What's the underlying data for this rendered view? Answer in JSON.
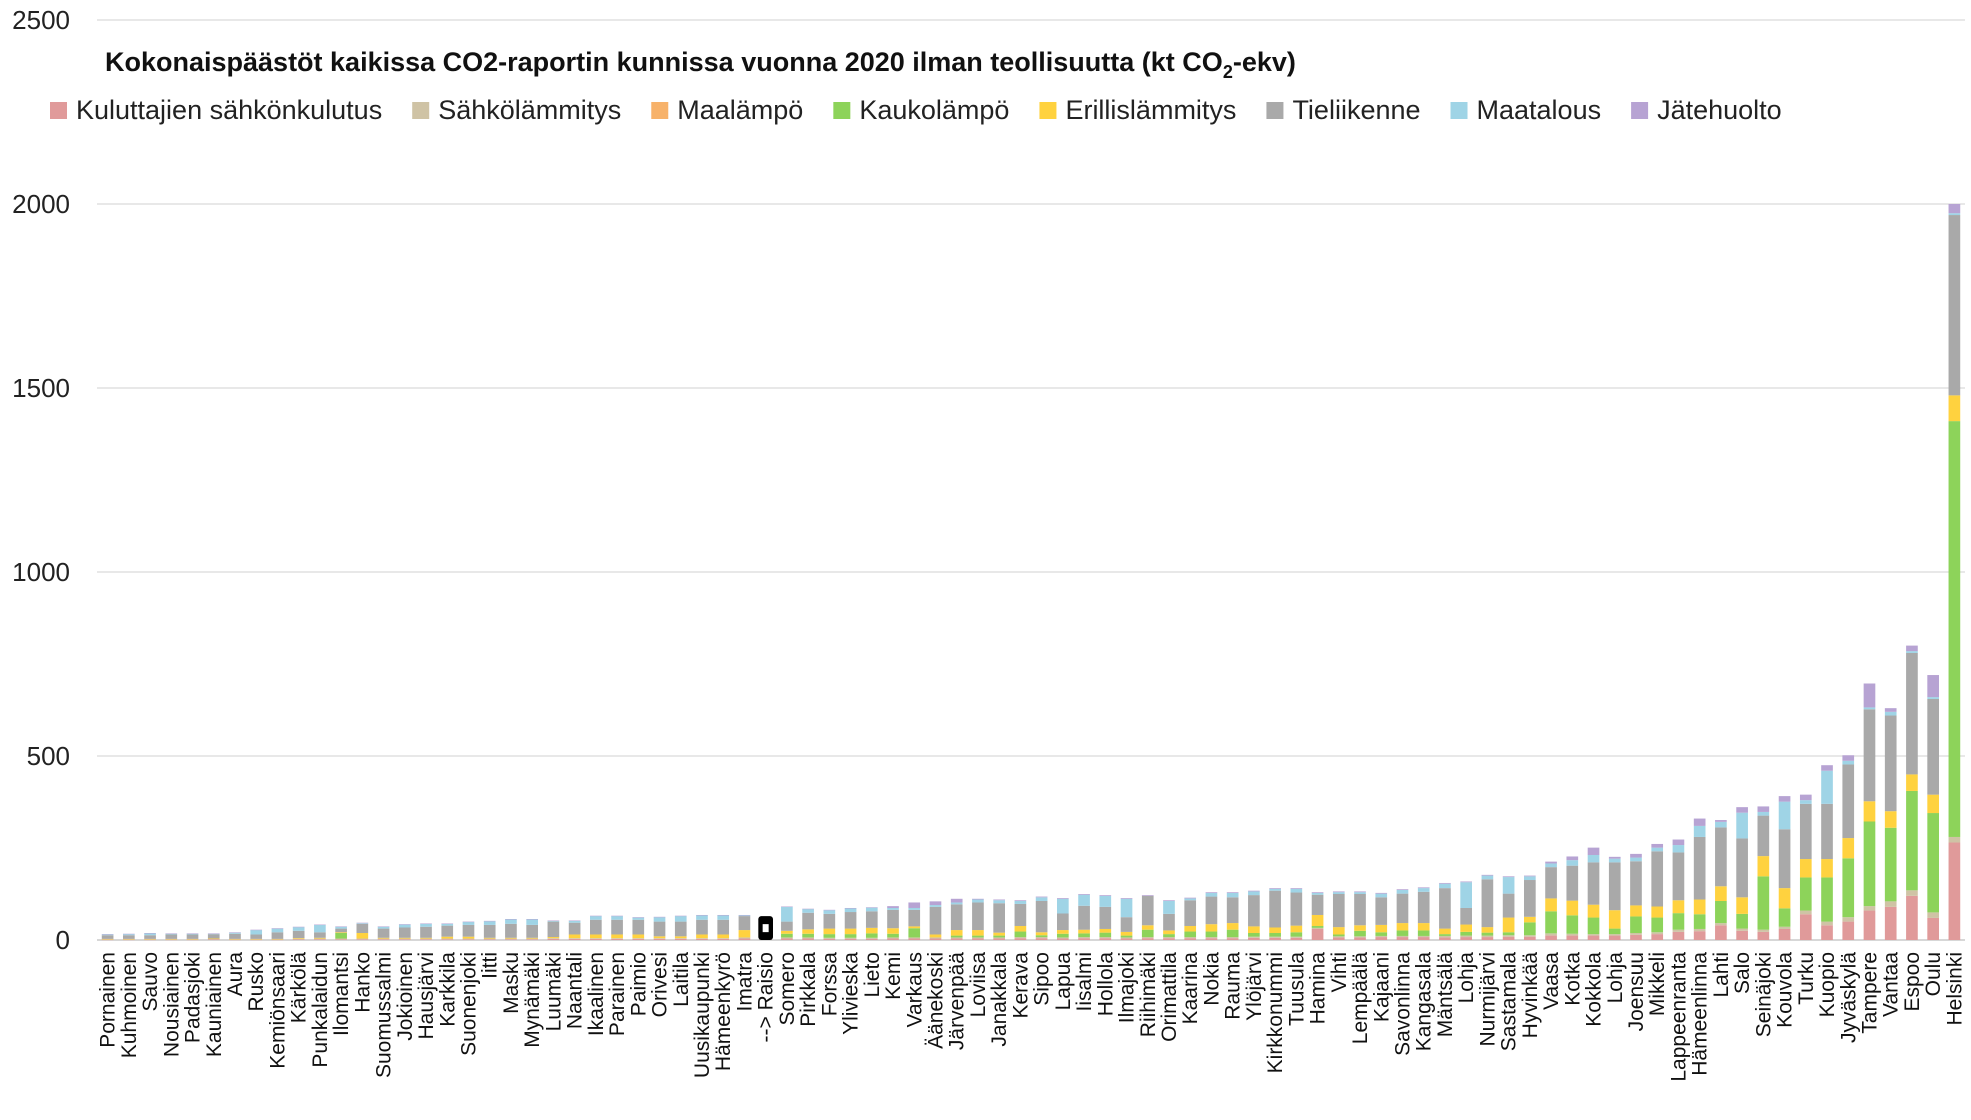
{
  "chart_data": {
    "type": "bar",
    "stacked": true,
    "title": "Kokonaispäästöt kaikissa CO2-raportin kunnissa vuonna 2020 ilman teollisuutta (kt CO",
    "title_subscript": "2",
    "title_suffix": "-ekv)",
    "xlabel": "",
    "ylabel": "",
    "ylim": [
      0,
      2500
    ],
    "yticks": [
      "0",
      "500",
      "1000",
      "1500",
      "2000",
      "2500"
    ],
    "grid": true,
    "legend_position": "top",
    "highlighted_category": "--> Raisio",
    "highlight_color": "#000000",
    "categories": [
      "Pornainen",
      "Kuhmoinen",
      "Sauvo",
      "Nousiainen",
      "Padasjoki",
      "Kauniainen",
      "Aura",
      "Rusko",
      "Kemiönsaari",
      "Kärkölä",
      "Punkalaidun",
      "Ilomantsi",
      "Hanko",
      "Suomussalmi",
      "Jokioinen",
      "Hausjärvi",
      "Karkkila",
      "Suonenjoki",
      "Iitti",
      "Masku",
      "Mynämäki",
      "Luumäki",
      "Naantali",
      "Ikaalinen",
      "Parainen",
      "Paimio",
      "Orivesi",
      "Laitila",
      "Uusikaupunki",
      "Hämeenkyrö",
      "Imatra",
      "--> Raisio",
      "Somero",
      "Pirkkala",
      "Forssa",
      "Ylivieska",
      "Lieto",
      "Kemi",
      "Varkaus",
      "Äänekoski",
      "Järvenpää",
      "Loviisa",
      "Janakkala",
      "Kerava",
      "Sipoo",
      "Lapua",
      "Iisalmi",
      "Hollola",
      "Ilmajoki",
      "Riihimäki",
      "Orimattila",
      "Kaarina",
      "Nokia",
      "Rauma",
      "Ylöjärvi",
      "Kirkkonummi",
      "Tuusula",
      "Hamina",
      "Vihti",
      "Lempäälä",
      "Kajaani",
      "Savonlinna",
      "Kangasala",
      "Mäntsälä",
      "Lohja",
      "Nurmijärvi",
      "Sastamala",
      "Hyvinkää",
      "Vaasa",
      "Kotka",
      "Kokkola",
      "Lohja",
      "Joensuu",
      "Mikkeli",
      "Lappeenranta",
      "Hämeenlinna",
      "Lahti",
      "Salo",
      "Seinäjoki",
      "Kouvola",
      "Turku",
      "Kuopio",
      "Jyväskylä",
      "Tampere",
      "Vantaa",
      "Espoo",
      "Oulu",
      "Helsinki"
    ],
    "series": [
      {
        "name": "Kuluttajien sähkönkulutus",
        "color": "#E09A9A",
        "values": [
          1,
          1,
          1,
          1,
          1,
          2,
          1,
          1,
          1,
          2,
          2,
          2,
          2,
          2,
          2,
          2,
          2,
          2,
          2,
          2,
          2,
          3,
          3,
          3,
          3,
          3,
          3,
          3,
          3,
          3,
          4,
          4,
          4,
          4,
          3,
          3,
          3,
          4,
          4,
          4,
          4,
          4,
          4,
          5,
          5,
          4,
          5,
          5,
          4,
          5,
          5,
          5,
          5,
          5,
          6,
          6,
          6,
          30,
          7,
          7,
          8,
          8,
          8,
          7,
          8,
          8,
          9,
          9,
          12,
          12,
          12,
          12,
          14,
          16,
          22,
          24,
          40,
          25,
          22,
          30,
          70,
          40,
          50,
          80,
          90,
          120,
          60,
          265
        ]
      },
      {
        "name": "Sähkölämmitys",
        "color": "#CFC3A5",
        "values": [
          1,
          1,
          1,
          1,
          1,
          1,
          1,
          1,
          1,
          1,
          2,
          2,
          2,
          2,
          2,
          2,
          2,
          2,
          2,
          2,
          2,
          2,
          2,
          2,
          2,
          2,
          2,
          2,
          2,
          2,
          3,
          3,
          3,
          3,
          3,
          3,
          3,
          3,
          3,
          3,
          3,
          3,
          3,
          3,
          3,
          3,
          3,
          3,
          3,
          3,
          3,
          3,
          3,
          3,
          3,
          3,
          3,
          3,
          3,
          3,
          3,
          3,
          3,
          4,
          4,
          4,
          4,
          4,
          6,
          5,
          4,
          4,
          5,
          5,
          6,
          6,
          6,
          6,
          6,
          6,
          10,
          10,
          12,
          12,
          15,
          15,
          15,
          15
        ]
      },
      {
        "name": "Maalämpö",
        "color": "#F7B26A",
        "values": [
          0,
          0,
          0,
          0,
          0,
          0,
          0,
          0,
          0,
          0,
          0,
          0,
          0,
          0,
          0,
          0,
          0,
          0,
          0,
          0,
          0,
          0,
          0,
          0,
          0,
          0,
          0,
          0,
          0,
          0,
          0,
          0,
          0,
          0,
          0,
          0,
          0,
          0,
          0,
          0,
          0,
          0,
          0,
          0,
          0,
          0,
          0,
          0,
          0,
          0,
          0,
          0,
          0,
          0,
          0,
          0,
          0,
          0,
          0,
          0,
          0,
          0,
          0,
          0,
          0,
          0,
          0,
          0,
          0,
          0,
          0,
          0,
          0,
          0,
          0,
          0,
          0,
          0,
          0,
          0,
          0,
          0,
          0,
          0,
          0,
          0,
          0,
          0
        ]
      },
      {
        "name": "Kaukolämpö",
        "color": "#8DD35A",
        "values": [
          0,
          0,
          0,
          0,
          0,
          0,
          0,
          0,
          0,
          0,
          0,
          15,
          0,
          0,
          0,
          0,
          0,
          0,
          0,
          0,
          0,
          0,
          0,
          0,
          0,
          0,
          0,
          0,
          0,
          0,
          0,
          0,
          10,
          10,
          10,
          10,
          12,
          10,
          25,
          0,
          5,
          5,
          5,
          15,
          5,
          10,
          10,
          12,
          5,
          20,
          8,
          15,
          15,
          20,
          10,
          10,
          12,
          5,
          5,
          15,
          10,
          15,
          15,
          5,
          10,
          8,
          8,
          35,
          60,
          50,
          45,
          15,
          45,
          40,
          45,
          40,
          60,
          40,
          145,
          50,
          90,
          120,
          160,
          230,
          200,
          270,
          270,
          1130
        ]
      },
      {
        "name": "Erillislämmitys",
        "color": "#FFD23F",
        "values": [
          1,
          1,
          1,
          1,
          1,
          1,
          1,
          1,
          1,
          2,
          2,
          2,
          15,
          2,
          2,
          2,
          5,
          5,
          2,
          2,
          2,
          3,
          10,
          10,
          10,
          10,
          5,
          5,
          10,
          10,
          20,
          8,
          8,
          12,
          15,
          15,
          15,
          15,
          5,
          8,
          15,
          15,
          8,
          15,
          8,
          10,
          10,
          10,
          10,
          12,
          10,
          15,
          20,
          18,
          18,
          15,
          18,
          30,
          20,
          15,
          20,
          20,
          20,
          15,
          20,
          15,
          40,
          15,
          35,
          40,
          35,
          50,
          30,
          30,
          35,
          40,
          40,
          45,
          55,
          55,
          50,
          50,
          55,
          55,
          45,
          45,
          50,
          70
        ]
      },
      {
        "name": "Tieliikenne",
        "color": "#A9A9A9",
        "values": [
          10,
          10,
          10,
          12,
          12,
          12,
          14,
          12,
          18,
          20,
          15,
          10,
          25,
          25,
          28,
          30,
          30,
          32,
          35,
          38,
          35,
          42,
          32,
          40,
          40,
          40,
          40,
          40,
          40,
          40,
          38,
          38,
          25,
          45,
          40,
          45,
          45,
          50,
          45,
          75,
          70,
          75,
          80,
          60,
          85,
          45,
          65,
          60,
          40,
          80,
          45,
          70,
          75,
          70,
          85,
          100,
          90,
          55,
          90,
          85,
          75,
          80,
          85,
          110,
          45,
          130,
          65,
          100,
          85,
          95,
          115,
          130,
          120,
          150,
          130,
          170,
          160,
          160,
          110,
          160,
          150,
          150,
          200,
          250,
          260,
          330,
          260,
          490
        ]
      },
      {
        "name": "Maatalous",
        "color": "#9FD4E6",
        "values": [
          2,
          3,
          5,
          2,
          2,
          1,
          3,
          12,
          10,
          10,
          20,
          5,
          2,
          5,
          8,
          8,
          5,
          8,
          10,
          12,
          15,
          2,
          5,
          10,
          10,
          6,
          12,
          15,
          12,
          12,
          2,
          0,
          40,
          10,
          10,
          10,
          10,
          5,
          5,
          5,
          5,
          8,
          8,
          8,
          10,
          40,
          30,
          30,
          50,
          0,
          35,
          5,
          10,
          12,
          10,
          5,
          10,
          5,
          5,
          5,
          10,
          10,
          10,
          12,
          70,
          10,
          45,
          10,
          10,
          15,
          20,
          10,
          10,
          10,
          20,
          30,
          15,
          70,
          10,
          75,
          10,
          90,
          10,
          5,
          10,
          5,
          5,
          5
        ]
      },
      {
        "name": "Jätehuolto",
        "color": "#B7A3D3",
        "values": [
          1,
          1,
          1,
          1,
          1,
          1,
          1,
          1,
          1,
          1,
          1,
          1,
          1,
          1,
          1,
          1,
          1,
          1,
          1,
          1,
          1,
          1,
          1,
          1,
          1,
          1,
          1,
          1,
          1,
          1,
          1,
          1,
          1,
          1,
          1,
          1,
          1,
          5,
          15,
          10,
          10,
          2,
          2,
          2,
          2,
          2,
          2,
          2,
          2,
          2,
          2,
          2,
          2,
          2,
          2,
          2,
          2,
          2,
          2,
          2,
          2,
          2,
          2,
          2,
          2,
          2,
          2,
          2,
          5,
          10,
          20,
          5,
          10,
          10,
          15,
          20,
          5,
          15,
          15,
          15,
          15,
          15,
          15,
          65,
          10,
          15,
          60,
          25
        ]
      }
    ]
  }
}
